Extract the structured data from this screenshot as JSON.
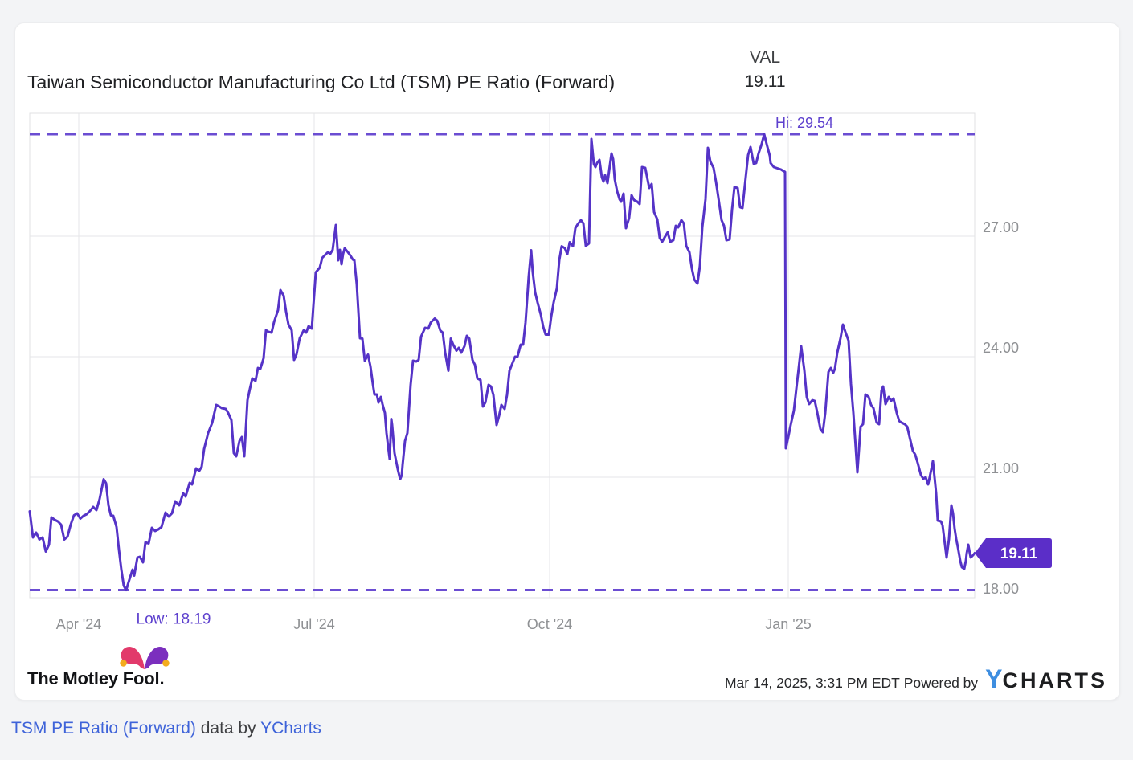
{
  "card": {
    "title": "Taiwan Semiconductor Manufacturing Co Ltd (TSM) PE Ratio (Forward)",
    "val_label": "VAL",
    "val_value": "19.11",
    "footer": {
      "brand": "The Motley Fool.",
      "brand_icon": "jester-hat-icon",
      "timestamp": "Mar 14, 2025, 3:31 PM EDT",
      "powered_by": "Powered by",
      "ycharts_y": "Y",
      "ycharts_rest": "CHARTS"
    }
  },
  "page": {
    "caption": {
      "link1": "TSM PE Ratio (Forward)",
      "middle": " data by ",
      "link2": "YCharts"
    }
  },
  "colors": {
    "line": "#5533C7",
    "dash": "#6B4DD2",
    "hilo_text": "#5E41CE",
    "badge_bg": "#5B2EC8",
    "badge_text": "#FFFFFF",
    "grid": "#E5E6E8",
    "border": "#E0E1E3",
    "tick_text": "#8F9194",
    "title_text": "#202124",
    "link": "#3E63D9",
    "ycharts_blue": "#3E8EE0",
    "hat_pink": "#E23A6B",
    "hat_purple": "#7B2FBE",
    "hat_gold": "#F3AC1E",
    "page_bg": "#F3F4F6",
    "card_bg": "#FFFFFF"
  },
  "chart_data": {
    "type": "line",
    "title": "Taiwan Semiconductor Manufacturing Co Ltd (TSM) PE Ratio (Forward)",
    "series_name": "TSM PE Ratio (Forward)",
    "current_value": 19.11,
    "badge_label": "19.11",
    "high": {
      "label": "Hi: 29.54",
      "value": 29.54,
      "label_x": 964
    },
    "low": {
      "label": "Low: 18.19",
      "value": 18.19,
      "label_x": 179
    },
    "grid": true,
    "legend": "none",
    "ylim": [
      18.0,
      30.06
    ],
    "x_domain": [
      0,
      1176
    ],
    "x_ticks": [
      {
        "label": "Apr '24",
        "x": 61
      },
      {
        "label": "Jul '24",
        "x": 354
      },
      {
        "label": "Oct '24",
        "x": 647
      },
      {
        "label": "Jan '25",
        "x": 944
      }
    ],
    "y_ticks": [
      {
        "label": "18.00",
        "value": 18
      },
      {
        "label": "21.00",
        "value": 21
      },
      {
        "label": "24.00",
        "value": 24
      },
      {
        "label": "27.00",
        "value": 27
      }
    ],
    "points": [
      [
        0,
        20.15
      ],
      [
        4,
        19.5
      ],
      [
        8,
        19.62
      ],
      [
        12,
        19.45
      ],
      [
        16,
        19.5
      ],
      [
        20,
        19.15
      ],
      [
        24,
        19.32
      ],
      [
        27,
        20.0
      ],
      [
        31,
        19.94
      ],
      [
        35,
        19.9
      ],
      [
        39,
        19.82
      ],
      [
        43,
        19.45
      ],
      [
        47,
        19.52
      ],
      [
        51,
        19.82
      ],
      [
        55,
        20.05
      ],
      [
        59,
        20.1
      ],
      [
        63,
        19.97
      ],
      [
        67,
        20.04
      ],
      [
        71,
        20.08
      ],
      [
        75,
        20.16
      ],
      [
        79,
        20.26
      ],
      [
        83,
        20.18
      ],
      [
        87,
        20.46
      ],
      [
        92,
        20.95
      ],
      [
        95,
        20.85
      ],
      [
        98,
        20.3
      ],
      [
        101,
        20.05
      ],
      [
        104,
        20.04
      ],
      [
        108,
        19.76
      ],
      [
        111,
        19.2
      ],
      [
        114,
        18.7
      ],
      [
        117,
        18.3
      ],
      [
        120,
        18.19
      ],
      [
        124,
        18.45
      ],
      [
        128,
        18.7
      ],
      [
        130,
        18.55
      ],
      [
        134,
        19.0
      ],
      [
        137,
        19.02
      ],
      [
        141,
        18.88
      ],
      [
        144,
        19.38
      ],
      [
        148,
        19.35
      ],
      [
        152,
        19.74
      ],
      [
        156,
        19.66
      ],
      [
        160,
        19.7
      ],
      [
        164,
        19.76
      ],
      [
        169,
        20.12
      ],
      [
        173,
        20.02
      ],
      [
        177,
        20.1
      ],
      [
        181,
        20.4
      ],
      [
        186,
        20.3
      ],
      [
        191,
        20.6
      ],
      [
        194,
        20.52
      ],
      [
        199,
        20.86
      ],
      [
        202,
        20.82
      ],
      [
        207,
        21.22
      ],
      [
        211,
        21.16
      ],
      [
        214,
        21.26
      ],
      [
        217,
        21.7
      ],
      [
        222,
        22.1
      ],
      [
        227,
        22.35
      ],
      [
        232,
        22.8
      ],
      [
        236,
        22.76
      ],
      [
        239,
        22.72
      ],
      [
        244,
        22.7
      ],
      [
        247,
        22.6
      ],
      [
        251,
        22.42
      ],
      [
        254,
        21.6
      ],
      [
        257,
        21.52
      ],
      [
        261,
        21.9
      ],
      [
        264,
        22.0
      ],
      [
        267,
        21.52
      ],
      [
        271,
        22.92
      ],
      [
        274,
        23.2
      ],
      [
        277,
        23.46
      ],
      [
        281,
        23.4
      ],
      [
        284,
        23.72
      ],
      [
        287,
        23.7
      ],
      [
        291,
        23.96
      ],
      [
        294,
        24.66
      ],
      [
        297,
        24.62
      ],
      [
        301,
        24.6
      ],
      [
        304,
        24.86
      ],
      [
        309,
        25.16
      ],
      [
        312,
        25.66
      ],
      [
        316,
        25.52
      ],
      [
        319,
        25.12
      ],
      [
        322,
        24.8
      ],
      [
        326,
        24.66
      ],
      [
        329,
        23.92
      ],
      [
        332,
        24.06
      ],
      [
        336,
        24.46
      ],
      [
        341,
        24.66
      ],
      [
        344,
        24.6
      ],
      [
        347,
        24.76
      ],
      [
        351,
        24.7
      ],
      [
        356,
        26.1
      ],
      [
        361,
        26.22
      ],
      [
        364,
        26.46
      ],
      [
        367,
        26.52
      ],
      [
        371,
        26.6
      ],
      [
        374,
        26.56
      ],
      [
        377,
        26.66
      ],
      [
        381,
        27.28
      ],
      [
        384,
        26.4
      ],
      [
        386,
        26.66
      ],
      [
        388,
        26.3
      ],
      [
        390,
        26.56
      ],
      [
        392,
        26.7
      ],
      [
        396,
        26.6
      ],
      [
        399,
        26.52
      ],
      [
        402,
        26.42
      ],
      [
        404,
        26.4
      ],
      [
        407,
        25.8
      ],
      [
        411,
        24.46
      ],
      [
        414,
        24.45
      ],
      [
        417,
        23.9
      ],
      [
        421,
        24.05
      ],
      [
        424,
        23.76
      ],
      [
        427,
        23.32
      ],
      [
        429,
        23.06
      ],
      [
        432,
        23.06
      ],
      [
        434,
        22.86
      ],
      [
        437,
        23.0
      ],
      [
        439,
        22.82
      ],
      [
        442,
        22.6
      ],
      [
        444,
        22.1
      ],
      [
        447,
        21.6
      ],
      [
        448,
        21.45
      ],
      [
        450,
        22.45
      ],
      [
        451,
        22.3
      ],
      [
        454,
        21.6
      ],
      [
        458,
        21.2
      ],
      [
        461,
        20.95
      ],
      [
        463,
        21.05
      ],
      [
        464,
        21.3
      ],
      [
        467,
        21.9
      ],
      [
        470,
        22.1
      ],
      [
        474,
        23.3
      ],
      [
        477,
        23.9
      ],
      [
        481,
        23.88
      ],
      [
        484,
        23.92
      ],
      [
        487,
        24.5
      ],
      [
        492,
        24.72
      ],
      [
        496,
        24.7
      ],
      [
        499,
        24.85
      ],
      [
        504,
        24.95
      ],
      [
        507,
        24.9
      ],
      [
        511,
        24.65
      ],
      [
        514,
        24.6
      ],
      [
        517,
        24.1
      ],
      [
        521,
        23.65
      ],
      [
        524,
        24.45
      ],
      [
        527,
        24.3
      ],
      [
        531,
        24.15
      ],
      [
        534,
        24.22
      ],
      [
        537,
        24.1
      ],
      [
        541,
        24.26
      ],
      [
        544,
        24.52
      ],
      [
        547,
        24.45
      ],
      [
        551,
        23.92
      ],
      [
        554,
        23.8
      ],
      [
        557,
        23.46
      ],
      [
        561,
        23.42
      ],
      [
        564,
        22.76
      ],
      [
        567,
        22.86
      ],
      [
        571,
        23.3
      ],
      [
        574,
        23.26
      ],
      [
        577,
        23.05
      ],
      [
        581,
        22.3
      ],
      [
        584,
        22.52
      ],
      [
        587,
        22.8
      ],
      [
        591,
        22.7
      ],
      [
        594,
        23.05
      ],
      [
        597,
        23.65
      ],
      [
        601,
        23.85
      ],
      [
        604,
        24.0
      ],
      [
        607,
        24.0
      ],
      [
        611,
        24.3
      ],
      [
        614,
        24.3
      ],
      [
        617,
        24.85
      ],
      [
        621,
        26.0
      ],
      [
        624,
        26.65
      ],
      [
        626,
        26.1
      ],
      [
        629,
        25.6
      ],
      [
        632,
        25.35
      ],
      [
        636,
        25.05
      ],
      [
        639,
        24.75
      ],
      [
        642,
        24.55
      ],
      [
        646,
        24.55
      ],
      [
        649,
        25.0
      ],
      [
        652,
        25.35
      ],
      [
        656,
        25.7
      ],
      [
        659,
        26.4
      ],
      [
        662,
        26.75
      ],
      [
        666,
        26.7
      ],
      [
        669,
        26.55
      ],
      [
        672,
        26.85
      ],
      [
        676,
        26.75
      ],
      [
        679,
        27.2
      ],
      [
        682,
        27.3
      ],
      [
        686,
        27.4
      ],
      [
        689,
        27.32
      ],
      [
        692,
        26.76
      ],
      [
        696,
        26.82
      ],
      [
        699,
        29.42
      ],
      [
        702,
        28.8
      ],
      [
        704,
        28.72
      ],
      [
        706,
        28.82
      ],
      [
        709,
        28.9
      ],
      [
        712,
        28.46
      ],
      [
        714,
        28.36
      ],
      [
        716,
        28.52
      ],
      [
        719,
        28.32
      ],
      [
        721,
        28.62
      ],
      [
        724,
        29.06
      ],
      [
        726,
        28.92
      ],
      [
        728,
        28.42
      ],
      [
        731,
        28.12
      ],
      [
        734,
        27.92
      ],
      [
        736,
        27.86
      ],
      [
        739,
        28.06
      ],
      [
        742,
        27.2
      ],
      [
        746,
        27.46
      ],
      [
        749,
        28.02
      ],
      [
        752,
        27.9
      ],
      [
        756,
        27.86
      ],
      [
        759,
        27.8
      ],
      [
        762,
        28.72
      ],
      [
        766,
        28.7
      ],
      [
        768,
        28.5
      ],
      [
        771,
        28.2
      ],
      [
        774,
        28.3
      ],
      [
        777,
        27.6
      ],
      [
        781,
        27.42
      ],
      [
        784,
        26.96
      ],
      [
        787,
        26.86
      ],
      [
        791,
        27.0
      ],
      [
        794,
        27.1
      ],
      [
        797,
        26.86
      ],
      [
        801,
        26.9
      ],
      [
        804,
        27.26
      ],
      [
        807,
        27.22
      ],
      [
        811,
        27.4
      ],
      [
        814,
        27.32
      ],
      [
        817,
        26.76
      ],
      [
        821,
        26.6
      ],
      [
        824,
        26.2
      ],
      [
        827,
        25.92
      ],
      [
        831,
        25.82
      ],
      [
        834,
        26.26
      ],
      [
        837,
        27.22
      ],
      [
        841,
        27.92
      ],
      [
        844,
        29.2
      ],
      [
        847,
        28.86
      ],
      [
        851,
        28.7
      ],
      [
        854,
        28.36
      ],
      [
        857,
        27.96
      ],
      [
        861,
        27.4
      ],
      [
        864,
        27.26
      ],
      [
        867,
        26.9
      ],
      [
        871,
        26.92
      ],
      [
        874,
        27.66
      ],
      [
        877,
        28.22
      ],
      [
        881,
        28.2
      ],
      [
        884,
        27.72
      ],
      [
        887,
        27.7
      ],
      [
        891,
        28.46
      ],
      [
        894,
        29.02
      ],
      [
        897,
        29.22
      ],
      [
        901,
        28.8
      ],
      [
        904,
        28.82
      ],
      [
        907,
        29.06
      ],
      [
        911,
        29.3
      ],
      [
        914,
        29.54
      ],
      [
        917,
        29.3
      ],
      [
        921,
        29.0
      ],
      [
        922,
        28.82
      ],
      [
        926,
        28.72
      ],
      [
        929,
        28.7
      ],
      [
        932,
        28.68
      ],
      [
        935,
        28.66
      ],
      [
        938,
        28.62
      ],
      [
        940,
        28.6
      ],
      [
        941,
        21.72
      ],
      [
        944,
        22.0
      ],
      [
        947,
        22.3
      ],
      [
        951,
        22.66
      ],
      [
        954,
        23.2
      ],
      [
        957,
        23.72
      ],
      [
        960,
        24.26
      ],
      [
        964,
        23.66
      ],
      [
        967,
        23.0
      ],
      [
        970,
        22.82
      ],
      [
        974,
        22.92
      ],
      [
        977,
        22.9
      ],
      [
        980,
        22.62
      ],
      [
        984,
        22.2
      ],
      [
        987,
        22.12
      ],
      [
        990,
        22.6
      ],
      [
        994,
        23.62
      ],
      [
        997,
        23.72
      ],
      [
        1000,
        23.6
      ],
      [
        1002,
        23.7
      ],
      [
        1005,
        24.1
      ],
      [
        1009,
        24.46
      ],
      [
        1012,
        24.8
      ],
      [
        1015,
        24.62
      ],
      [
        1019,
        24.4
      ],
      [
        1022,
        23.32
      ],
      [
        1025,
        22.6
      ],
      [
        1028,
        21.72
      ],
      [
        1030,
        21.12
      ],
      [
        1034,
        22.26
      ],
      [
        1037,
        22.32
      ],
      [
        1040,
        23.06
      ],
      [
        1044,
        23.0
      ],
      [
        1047,
        22.8
      ],
      [
        1050,
        22.72
      ],
      [
        1054,
        22.36
      ],
      [
        1057,
        22.32
      ],
      [
        1060,
        23.16
      ],
      [
        1062,
        23.26
      ],
      [
        1065,
        22.82
      ],
      [
        1069,
        23.0
      ],
      [
        1072,
        22.9
      ],
      [
        1075,
        22.96
      ],
      [
        1079,
        22.6
      ],
      [
        1082,
        22.4
      ],
      [
        1085,
        22.36
      ],
      [
        1089,
        22.32
      ],
      [
        1092,
        22.26
      ],
      [
        1095,
        22.0
      ],
      [
        1099,
        21.66
      ],
      [
        1102,
        21.56
      ],
      [
        1105,
        21.36
      ],
      [
        1109,
        21.06
      ],
      [
        1112,
        20.96
      ],
      [
        1115,
        21.0
      ],
      [
        1118,
        20.82
      ],
      [
        1120,
        21.0
      ],
      [
        1124,
        21.4
      ],
      [
        1128,
        20.6
      ],
      [
        1130,
        19.92
      ],
      [
        1134,
        19.9
      ],
      [
        1136,
        19.8
      ],
      [
        1139,
        19.32
      ],
      [
        1141,
        19.0
      ],
      [
        1144,
        19.46
      ],
      [
        1147,
        20.3
      ],
      [
        1149,
        20.1
      ],
      [
        1151,
        19.72
      ],
      [
        1153,
        19.46
      ],
      [
        1155,
        19.26
      ],
      [
        1158,
        18.92
      ],
      [
        1160,
        18.76
      ],
      [
        1163,
        18.72
      ],
      [
        1165,
        18.92
      ],
      [
        1166,
        19.1
      ],
      [
        1168,
        19.32
      ],
      [
        1170,
        19.1
      ],
      [
        1171,
        19.0
      ],
      [
        1174,
        19.06
      ],
      [
        1176,
        19.11
      ]
    ]
  }
}
